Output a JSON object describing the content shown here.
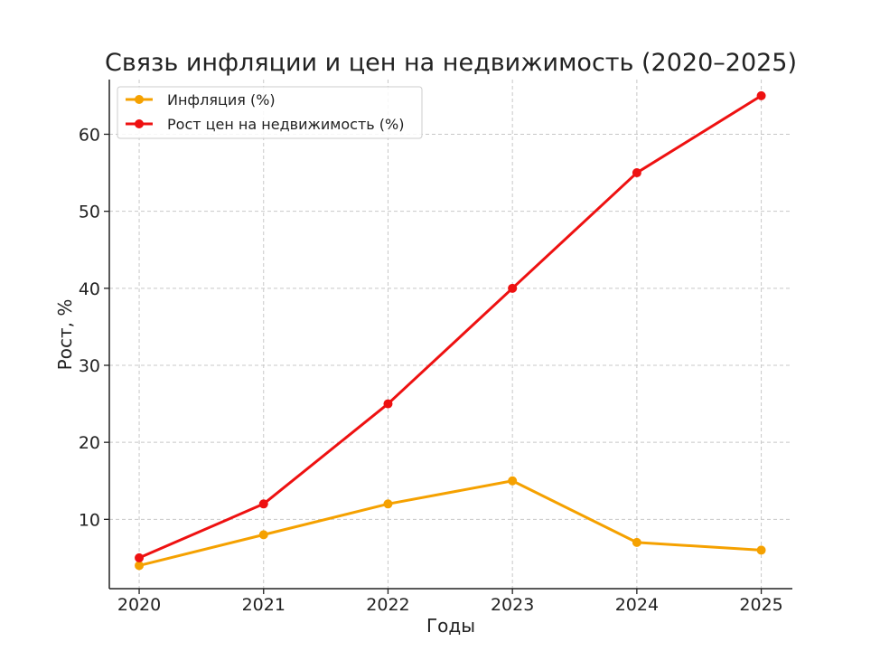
{
  "chart_data": {
    "type": "line",
    "title": "Связь инфляции и цен на недвижимость (2020–2025)",
    "xlabel": "Годы",
    "ylabel": "Рост, %",
    "categories": [
      "2020",
      "2021",
      "2022",
      "2023",
      "2024",
      "2025"
    ],
    "x": [
      2020,
      2021,
      2022,
      2023,
      2024,
      2025
    ],
    "xlim": [
      2019.76,
      2025.25
    ],
    "ylim": [
      1,
      67.1
    ],
    "yticks": [
      10,
      20,
      30,
      40,
      50,
      60
    ],
    "grid": true,
    "legend_position": "top-left",
    "series": [
      {
        "name": "Инфляция (%)",
        "color": "#f5a100",
        "marker": "circle",
        "values": [
          4,
          8,
          12,
          15,
          7,
          6
        ]
      },
      {
        "name": "Рост цен на недвижимость (%)",
        "color": "#ee1111",
        "marker": "circle",
        "values": [
          5,
          12,
          25,
          40,
          55,
          65
        ]
      }
    ]
  }
}
